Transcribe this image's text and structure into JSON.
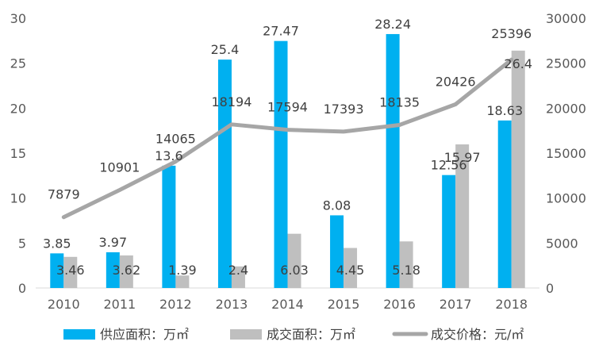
{
  "chart_data": {
    "type": "bar",
    "categories": [
      "2010",
      "2011",
      "2012",
      "2013",
      "2014",
      "2015",
      "2016",
      "2017",
      "2018"
    ],
    "series": [
      {
        "name": "供应面积：万㎡",
        "kind": "bar",
        "axis": "left",
        "color": "#00B0F0",
        "values": [
          3.85,
          3.97,
          13.6,
          25.4,
          27.47,
          8.08,
          28.24,
          12.56,
          18.63
        ]
      },
      {
        "name": "成交面积：万㎡",
        "kind": "bar",
        "axis": "left",
        "color": "#BFBFBF",
        "values": [
          3.46,
          3.62,
          1.39,
          2.4,
          6.03,
          4.45,
          5.18,
          15.97,
          26.4
        ]
      },
      {
        "name": "成交价格：元/㎡",
        "kind": "line",
        "axis": "right",
        "color": "#A6A6A6",
        "values": [
          7879,
          10901,
          14065,
          18194,
          17594,
          17393,
          18135,
          20426,
          25396
        ]
      }
    ],
    "ylim_left": [
      0,
      30
    ],
    "yticks_left": [
      0,
      5,
      10,
      15,
      20,
      25,
      30
    ],
    "ylim_right": [
      0,
      30000
    ],
    "yticks_right": [
      0,
      5000,
      10000,
      15000,
      20000,
      25000,
      30000
    ],
    "grid": false,
    "legend_position": "bottom"
  }
}
